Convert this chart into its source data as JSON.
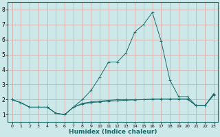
{
  "xlabel": "Humidex (Indice chaleur)",
  "background_color": "#cce8e8",
  "plot_bg_color": "#cce8e8",
  "grid_color": "#d4a0a0",
  "line_color": "#1a6b6b",
  "xlim": [
    -0.5,
    23.5
  ],
  "ylim": [
    0.5,
    8.5
  ],
  "yticks": [
    1,
    2,
    3,
    4,
    5,
    6,
    7,
    8
  ],
  "xticks": [
    0,
    1,
    2,
    3,
    4,
    5,
    6,
    7,
    8,
    9,
    10,
    11,
    12,
    13,
    14,
    15,
    16,
    17,
    18,
    19,
    20,
    21,
    22,
    23
  ],
  "series1_y": [
    2.0,
    1.8,
    1.5,
    1.5,
    1.5,
    1.1,
    1.0,
    1.5,
    2.0,
    2.6,
    3.5,
    4.5,
    4.5,
    5.1,
    6.5,
    7.0,
    7.8,
    5.9,
    3.3,
    2.2,
    2.2,
    1.6,
    1.6,
    2.4
  ],
  "series2_y": [
    2.0,
    1.8,
    1.5,
    1.5,
    1.5,
    1.1,
    1.0,
    1.5,
    1.75,
    1.85,
    1.9,
    1.95,
    2.0,
    2.0,
    2.0,
    2.0,
    2.05,
    2.05,
    2.05,
    2.05,
    2.05,
    1.6,
    1.6,
    2.35
  ],
  "series3_y": [
    2.0,
    1.8,
    1.5,
    1.5,
    1.5,
    1.1,
    1.0,
    1.5,
    1.7,
    1.8,
    1.85,
    1.9,
    1.93,
    1.96,
    1.98,
    2.0,
    2.02,
    2.03,
    2.03,
    2.03,
    2.03,
    1.6,
    1.6,
    2.3
  ],
  "xlabel_fontsize": 6.5,
  "tick_fontsize_x": 4.5,
  "tick_fontsize_y": 5.5,
  "linewidth": 0.7,
  "markersize": 2.5
}
